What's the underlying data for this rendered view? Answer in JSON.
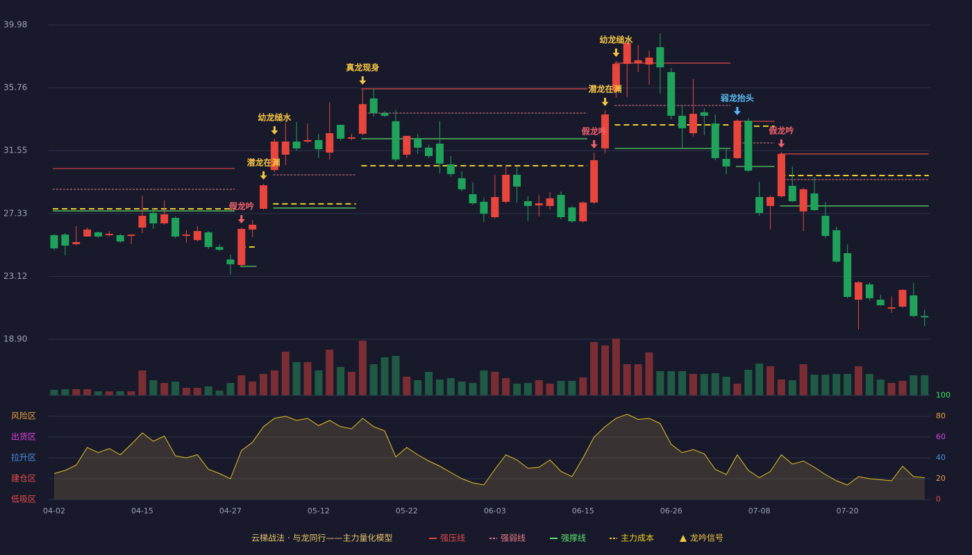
{
  "chart_data": [
    {
      "type": "candlestick",
      "categories": [
        "04-02",
        null,
        null,
        null,
        null,
        null,
        null,
        null,
        "04-15",
        null,
        null,
        null,
        null,
        null,
        null,
        null,
        "04-27",
        null,
        null,
        null,
        null,
        null,
        null,
        null,
        "05-12",
        null,
        null,
        null,
        null,
        null,
        null,
        null,
        "05-22",
        null,
        null,
        null,
        null,
        null,
        null,
        null,
        "06-03",
        null,
        null,
        null,
        null,
        null,
        null,
        null,
        "06-15",
        null,
        null,
        null,
        null,
        null,
        null,
        null,
        "06-26",
        null,
        null,
        null,
        null,
        null,
        null,
        null,
        "07-08",
        null,
        null,
        null,
        null,
        null,
        null,
        null,
        "07-20",
        null,
        null,
        null,
        null,
        null,
        null,
        null
      ],
      "open": [
        25.88,
        25.92,
        25.28,
        25.79,
        26.07,
        25.88,
        25.88,
        25.83,
        26.39,
        27.37,
        26.67,
        27.04,
        25.83,
        25.55,
        26.07,
        25.09,
        24.25,
        23.88,
        26.26,
        27.65,
        30.25,
        31.28,
        32.16,
        32.16,
        32.26,
        31.42,
        33.28,
        32.35,
        32.68,
        35.05,
        34.07,
        33.52,
        31.28,
        32.35,
        31.75,
        32.02,
        30.63,
        29.7,
        28.63,
        28.12,
        27.09,
        28.12,
        29.93,
        28.16,
        27.88,
        27.84,
        28.58,
        27.74,
        26.81,
        28.07,
        31.7,
        35.56,
        37.37,
        37.42,
        37.33,
        38.49,
        36.82,
        33.89,
        32.72,
        34.12,
        33.37,
        31.0,
        31.05,
        33.56,
        28.44,
        27.84,
        28.49,
        29.19,
        27.47,
        28.68,
        27.18,
        26.21,
        24.67,
        21.55,
        22.58,
        21.55,
        20.95,
        21.09,
        21.84,
        20.46
      ],
      "high": [
        25.97,
        26.02,
        26.48,
        26.39,
        26.11,
        26.16,
        25.97,
        25.92,
        28.53,
        27.7,
        28.21,
        27.14,
        26.21,
        26.49,
        26.16,
        25.28,
        24.58,
        26.39,
        26.91,
        29.33,
        32.35,
        33.42,
        33.47,
        33.37,
        32.68,
        34.77,
        33.28,
        32.68,
        35.7,
        35.7,
        34.21,
        34.3,
        32.54,
        32.68,
        31.94,
        33.52,
        31.19,
        30.16,
        29.42,
        28.4,
        29.93,
        30.49,
        30.49,
        28.49,
        28.58,
        28.77,
        28.82,
        27.84,
        28.16,
        31.42,
        34.26,
        37.56,
        38.95,
        38.63,
        38.26,
        39.42,
        37.1,
        34.58,
        36.35,
        34.4,
        33.98,
        31.75,
        33.65,
        33.75,
        29.47,
        28.54,
        31.47,
        30.49,
        29.05,
        29.79,
        28.12,
        26.44,
        25.28,
        22.81,
        22.72,
        21.88,
        21.77,
        22.26,
        22.68,
        20.88
      ],
      "low": [
        24.86,
        24.53,
        25.18,
        25.79,
        25.7,
        25.79,
        25.37,
        25.28,
        26.02,
        26.3,
        26.58,
        25.7,
        25.37,
        25.46,
        24.95,
        24.81,
        23.23,
        23.79,
        25.74,
        27.6,
        30.11,
        30.58,
        31.56,
        32.07,
        31.05,
        30.96,
        32.21,
        32.26,
        32.58,
        33.84,
        33.8,
        30.82,
        31.05,
        31.33,
        31.05,
        30.02,
        29.79,
        28.82,
        27.93,
        26.77,
        27.0,
        28.02,
        28.07,
        26.84,
        27.14,
        27.6,
        26.95,
        26.72,
        26.72,
        27.98,
        31.37,
        35.1,
        35.14,
        36.82,
        35.98,
        35.38,
        33.65,
        31.7,
        32.49,
        32.58,
        30.91,
        29.98,
        31.0,
        30.11,
        27.18,
        26.26,
        28.4,
        28.12,
        26.16,
        27.51,
        25.7,
        24.02,
        21.65,
        19.55,
        21.51,
        21.14,
        20.67,
        21.0,
        20.37,
        19.78
      ],
      "close": [
        25.0,
        25.18,
        25.42,
        26.26,
        25.79,
        25.97,
        25.46,
        25.92,
        27.18,
        26.67,
        27.28,
        25.79,
        25.92,
        26.16,
        25.09,
        24.9,
        23.93,
        26.3,
        26.58,
        29.23,
        32.16,
        32.16,
        31.7,
        32.26,
        31.65,
        32.72,
        32.35,
        32.44,
        34.67,
        34.07,
        33.89,
        30.96,
        32.54,
        31.75,
        31.19,
        30.68,
        29.98,
        28.96,
        28.02,
        27.32,
        28.44,
        29.93,
        29.14,
        27.84,
        28.02,
        28.35,
        27.09,
        26.81,
        28.07,
        30.91,
        33.98,
        37.37,
        38.77,
        37.61,
        37.79,
        37.14,
        33.89,
        33.05,
        34.02,
        33.89,
        31.05,
        30.49,
        33.56,
        30.21,
        27.37,
        28.44,
        31.33,
        28.16,
        28.96,
        27.56,
        25.83,
        24.11,
        21.74,
        22.72,
        21.65,
        21.18,
        21.04,
        22.21,
        20.46,
        20.37
      ],
      "up_color": "#e8463c",
      "down_color": "#1fa35b",
      "ylim": [
        18.9,
        39.98
      ],
      "yticks": [
        {
          "value": 18.9,
          "label": "18.90"
        },
        23.12,
        27.33,
        31.55,
        35.76,
        39.98
      ],
      "grid": true,
      "levels": [
        {
          "name": "强压线",
          "color": "#e04848",
          "dashed": false,
          "segments": [
            {
              "value": 30.35,
              "start": 0,
              "end": 16
            },
            {
              "value": 35.7,
              "start": 28,
              "end": 48
            },
            {
              "value": 37.42,
              "start": 51,
              "end": 61
            },
            {
              "value": 33.52,
              "start": 62,
              "end": 65
            },
            {
              "value": 31.33,
              "start": 66,
              "end": 79
            }
          ]
        },
        {
          "name": "强弱线",
          "color": "#e87a8a",
          "dashed": true,
          "segments": [
            {
              "value": 28.96,
              "start": 0,
              "end": 16
            },
            {
              "value": 29.93,
              "start": 20,
              "end": 27
            },
            {
              "value": 34.07,
              "start": 28,
              "end": 48
            },
            {
              "value": 34.58,
              "start": 51,
              "end": 61
            },
            {
              "value": 32.07,
              "start": 62,
              "end": 65
            },
            {
              "value": 29.61,
              "start": 66,
              "end": 79
            }
          ]
        },
        {
          "name": "强撑线",
          "color": "#5ee06a",
          "dashed": false,
          "segments": [
            {
              "value": 27.51,
              "start": 0,
              "end": 16
            },
            {
              "value": 23.79,
              "start": 17,
              "end": 18
            },
            {
              "value": 27.7,
              "start": 20,
              "end": 27
            },
            {
              "value": 32.35,
              "start": 28,
              "end": 48
            },
            {
              "value": 31.7,
              "start": 51,
              "end": 61
            },
            {
              "value": 30.49,
              "start": 62,
              "end": 65
            },
            {
              "value": 27.84,
              "start": 66,
              "end": 79
            }
          ]
        },
        {
          "name": "主力成本",
          "color": "#f0d020",
          "dashed": true,
          "segments": [
            {
              "value": 27.65,
              "start": 0,
              "end": 16
            },
            {
              "value": 25.09,
              "start": 17,
              "end": 18
            },
            {
              "value": 27.98,
              "start": 20,
              "end": 27
            },
            {
              "value": 30.54,
              "start": 28,
              "end": 48
            },
            {
              "value": 33.28,
              "start": 51,
              "end": 61
            },
            {
              "value": 33.19,
              "start": 62,
              "end": 65
            },
            {
              "value": 29.88,
              "start": 66,
              "end": 79
            }
          ]
        }
      ],
      "signals": [
        {
          "index": 17,
          "label": "假龙吟",
          "color": "#f0606a"
        },
        {
          "index": 19,
          "label": "潜龙在渊",
          "color": "#f5c542"
        },
        {
          "index": 20,
          "label": "幼龙缒水",
          "color": "#f5c542"
        },
        {
          "index": 28,
          "label": "真龙现身",
          "color": "#f5c542"
        },
        {
          "index": 49,
          "label": "假龙吟",
          "color": "#f0606a"
        },
        {
          "index": 50,
          "label": "潜龙在渊",
          "color": "#f5c542"
        },
        {
          "index": 51,
          "label": "幼龙缒水",
          "color": "#f5c542"
        },
        {
          "index": 62,
          "label": "弱龙抬头",
          "color": "#5ab8f0"
        },
        {
          "index": 66,
          "label": "假龙吟",
          "color": "#f0606a"
        }
      ],
      "legend_title": "云梯战法 · 与龙同行——主力量化模型",
      "signal_name": "龙吟信号",
      "signal_color": "#f5c542"
    },
    {
      "type": "bar",
      "values": [
        8,
        9,
        9,
        9,
        6,
        6,
        6,
        6,
        36,
        22,
        18,
        20,
        11,
        11,
        13,
        7,
        18,
        29,
        20,
        31,
        36,
        63,
        48,
        48,
        36,
        66,
        41,
        34,
        79,
        45,
        55,
        57,
        27,
        22,
        34,
        23,
        25,
        20,
        18,
        36,
        34,
        25,
        17,
        18,
        22,
        17,
        21,
        21,
        26,
        77,
        72,
        82,
        45,
        45,
        62,
        35,
        35,
        35,
        31,
        31,
        32,
        27,
        17,
        37,
        46,
        42,
        23,
        22,
        45,
        30,
        30,
        31,
        31,
        42,
        31,
        23,
        18,
        21,
        29,
        29
      ],
      "up_color": "#7a2e34",
      "down_color": "#1f5a44"
    },
    {
      "type": "line",
      "values": [
        25,
        28,
        33,
        50,
        45,
        49,
        43,
        53,
        64,
        56,
        61,
        42,
        40,
        43,
        29,
        25,
        20,
        47,
        55,
        70,
        78,
        80,
        76,
        78,
        71,
        76,
        70,
        68,
        78,
        70,
        66,
        41,
        50,
        43,
        37,
        32,
        26,
        20,
        16,
        14,
        29,
        43,
        38,
        30,
        31,
        38,
        27,
        22,
        40,
        60,
        70,
        78,
        82,
        77,
        78,
        73,
        53,
        45,
        48,
        44,
        29,
        24,
        43,
        28,
        21,
        27,
        43,
        34,
        37,
        31,
        24,
        18,
        14,
        22,
        20,
        19,
        18,
        32,
        22,
        21
      ],
      "color": "#e8c020",
      "ylim": [
        0,
        100
      ],
      "yticks": [
        0,
        20,
        40,
        60,
        80,
        100
      ],
      "ytick_colors": [
        "#e84a4a",
        "#e8a040",
        "#4a90e0",
        "#e040e0",
        "#e8a040",
        "#3de060"
      ],
      "zones": [
        {
          "label": "风险区",
          "value": 80,
          "color": "#e8a040"
        },
        {
          "label": "出货区",
          "value": 60,
          "color": "#e040e0"
        },
        {
          "label": "拉升区",
          "value": 40,
          "color": "#4a90e0"
        },
        {
          "label": "建仓区",
          "value": 20,
          "color": "#e84a4a"
        },
        {
          "label": "低吸区",
          "value": 0,
          "color": "#e84a4a"
        }
      ]
    }
  ]
}
